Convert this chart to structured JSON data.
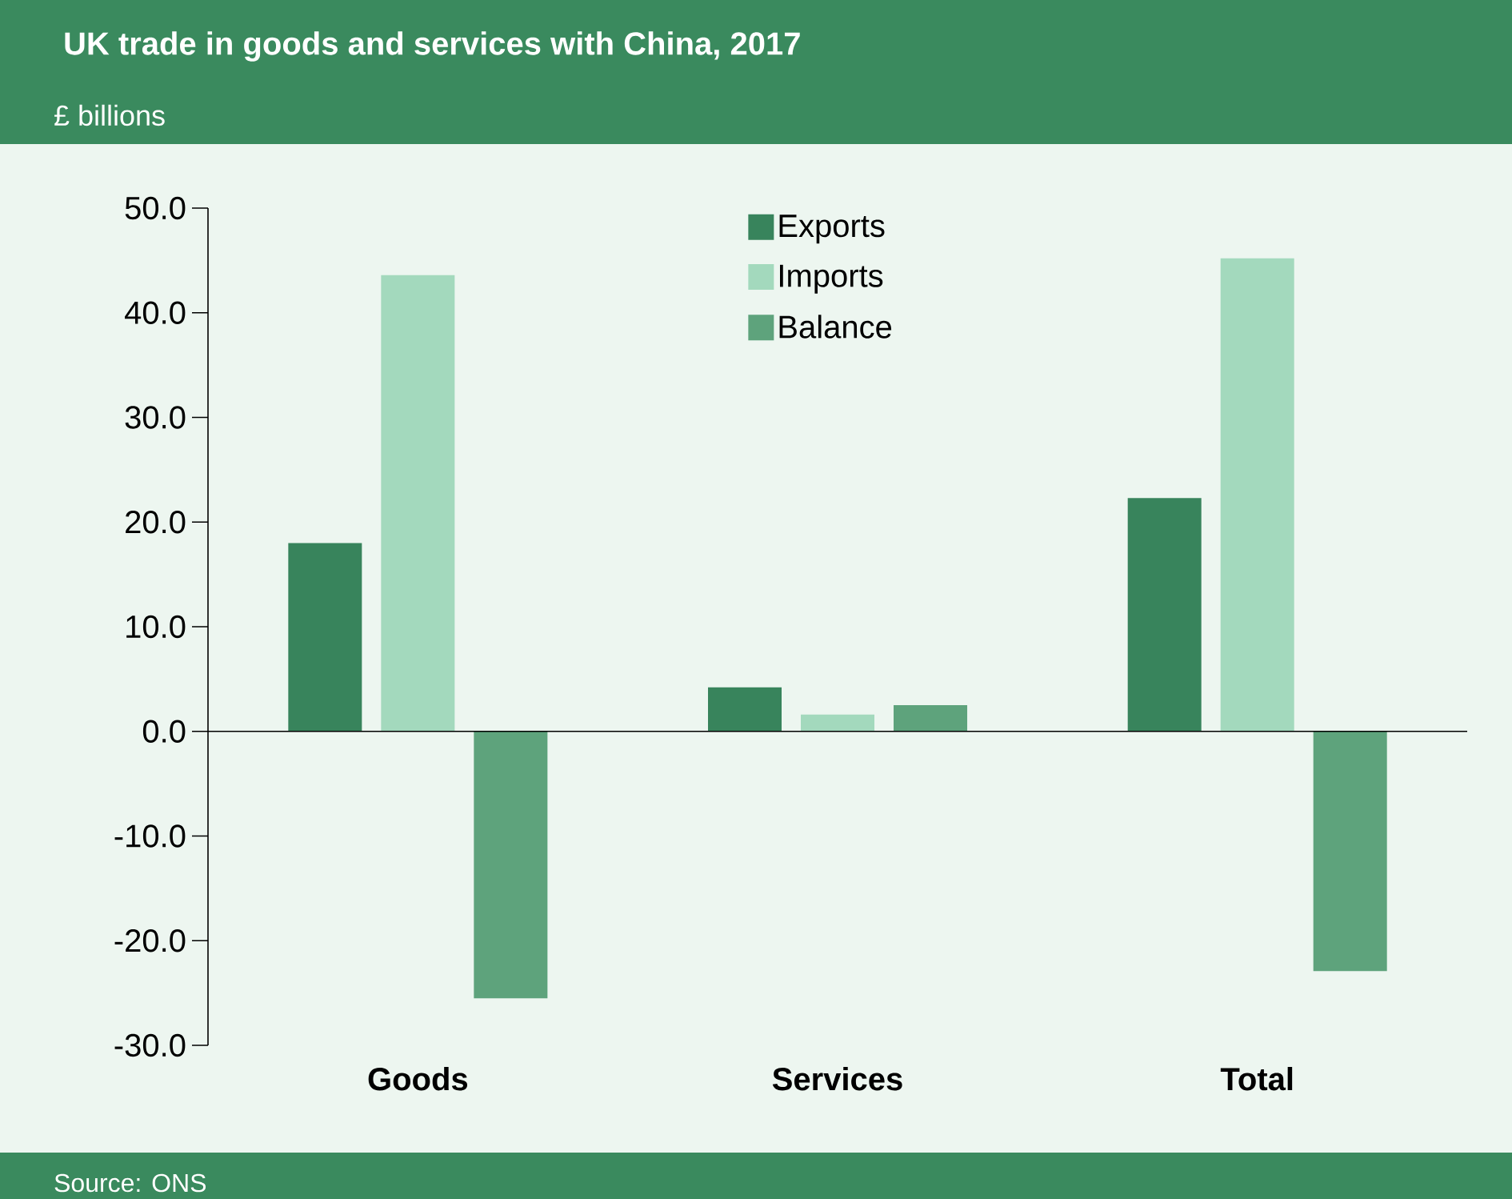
{
  "chart_data": {
    "type": "bar",
    "title": "UK trade in goods and services with China, 2017",
    "subtitle": "£ billions",
    "annotations": [
      "Source: ONS"
    ],
    "categories": [
      "Goods",
      "Services",
      "Total"
    ],
    "series": [
      {
        "name": "Exports",
        "color": "#38845c",
        "values": [
          18.0,
          4.2,
          22.3
        ]
      },
      {
        "name": "Imports",
        "color": "#a3d9bd",
        "values": [
          43.6,
          1.6,
          45.2
        ]
      },
      {
        "name": "Balance",
        "color": "#5ea37c",
        "values": [
          -25.5,
          2.5,
          -22.9
        ]
      }
    ],
    "ylim": [
      -30,
      50
    ],
    "yticks": [
      {
        "value": -30,
        "label": "-30.0"
      },
      {
        "value": -20,
        "label": "-20.0"
      },
      {
        "value": -10,
        "label": "-10.0"
      },
      {
        "value": 0,
        "label": "0.0"
      },
      {
        "value": 10,
        "label": "10.0"
      },
      {
        "value": 20,
        "label": "20.0"
      },
      {
        "value": 30,
        "label": "30.0"
      },
      {
        "value": 40,
        "label": "40.0"
      },
      {
        "value": 50,
        "label": "50.0"
      }
    ],
    "legend": "top"
  }
}
